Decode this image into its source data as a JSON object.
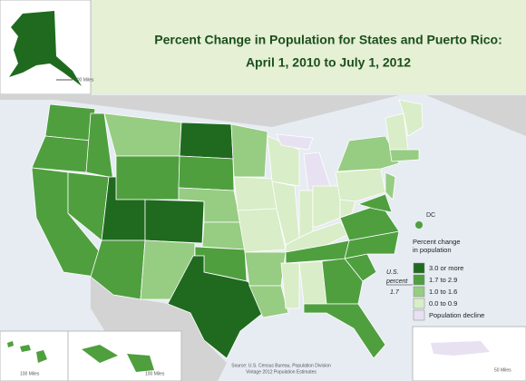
{
  "title": {
    "line1": "Percent Change in Population for States and Puerto Rico:",
    "line2": "April 1, 2010 to July 1, 2012"
  },
  "legend": {
    "title": [
      "Percent change",
      "in population"
    ],
    "items": [
      {
        "label": "3.0 or more",
        "color": "#1f6a1f"
      },
      {
        "label": "1.7 to 2.9",
        "color": "#4f9f3f"
      },
      {
        "label": "1.0 to 1.6",
        "color": "#97cc83"
      },
      {
        "label": "0.0 to 0.9",
        "color": "#d9edc8"
      },
      {
        "label": "Population decline",
        "color": "#e7e1f1"
      }
    ],
    "us_label": [
      "U.S.",
      "percent"
    ],
    "us_value": 1.7
  },
  "dc_label": "DC",
  "source": [
    "Source: U.S. Census Bureau, Population Division",
    "Vintage 2012 Population Estimates"
  ],
  "scales": {
    "alaska": "100 Miles",
    "hawaii": "100 Miles",
    "hawaii2": "100 Miles",
    "puerto_rico": "50 Miles"
  }
}
